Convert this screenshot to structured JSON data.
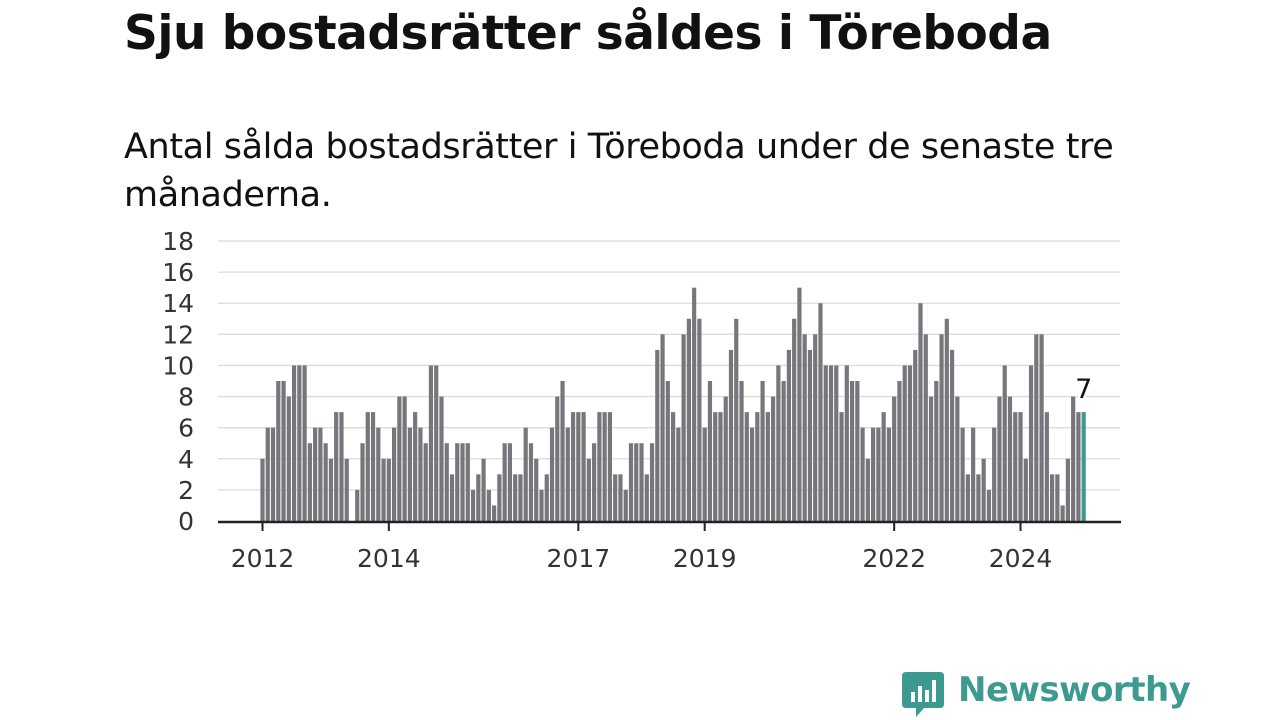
{
  "title": "Sju bostadsrätter såldes i Töreboda",
  "subtitle": "Antal sålda bostadsrätter i Töreboda under de senaste tre månaderna.",
  "brand": {
    "name": "Newsworthy",
    "color": "#3d9a91",
    "icon": "bar-chart-speech-bubble-icon"
  },
  "chart_data": {
    "type": "bar",
    "ylim": [
      0,
      18
    ],
    "yticks": [
      0,
      2,
      4,
      6,
      8,
      10,
      12,
      14,
      16,
      18
    ],
    "xticks": [
      {
        "label": "2012",
        "index": 0
      },
      {
        "label": "2014",
        "index": 24
      },
      {
        "label": "2017",
        "index": 60
      },
      {
        "label": "2019",
        "index": 84
      },
      {
        "label": "2022",
        "index": 120
      },
      {
        "label": "2024",
        "index": 144
      }
    ],
    "grid": true,
    "bar_color": "#76767c",
    "highlight_color": "#3d9a91",
    "highlight_label": "7",
    "values": [
      4,
      6,
      6,
      9,
      9,
      8,
      10,
      10,
      10,
      5,
      6,
      6,
      5,
      4,
      7,
      7,
      4,
      0,
      2,
      5,
      7,
      7,
      6,
      4,
      4,
      6,
      8,
      8,
      6,
      7,
      6,
      5,
      10,
      10,
      8,
      5,
      3,
      5,
      5,
      5,
      2,
      3,
      4,
      2,
      1,
      3,
      5,
      5,
      3,
      3,
      6,
      5,
      4,
      2,
      3,
      6,
      8,
      9,
      6,
      7,
      7,
      7,
      4,
      5,
      7,
      7,
      7,
      3,
      3,
      2,
      5,
      5,
      5,
      3,
      5,
      11,
      12,
      9,
      7,
      6,
      12,
      13,
      15,
      13,
      6,
      9,
      7,
      7,
      8,
      11,
      13,
      9,
      7,
      6,
      7,
      9,
      7,
      8,
      10,
      9,
      11,
      13,
      15,
      12,
      11,
      12,
      14,
      10,
      10,
      10,
      7,
      10,
      9,
      9,
      6,
      4,
      6,
      6,
      7,
      6,
      8,
      9,
      10,
      10,
      11,
      14,
      12,
      8,
      9,
      12,
      13,
      11,
      8,
      6,
      3,
      6,
      3,
      4,
      2,
      6,
      8,
      10,
      8,
      7,
      7,
      4,
      10,
      12,
      12,
      7,
      3,
      3,
      1,
      4,
      8,
      7,
      7
    ]
  }
}
